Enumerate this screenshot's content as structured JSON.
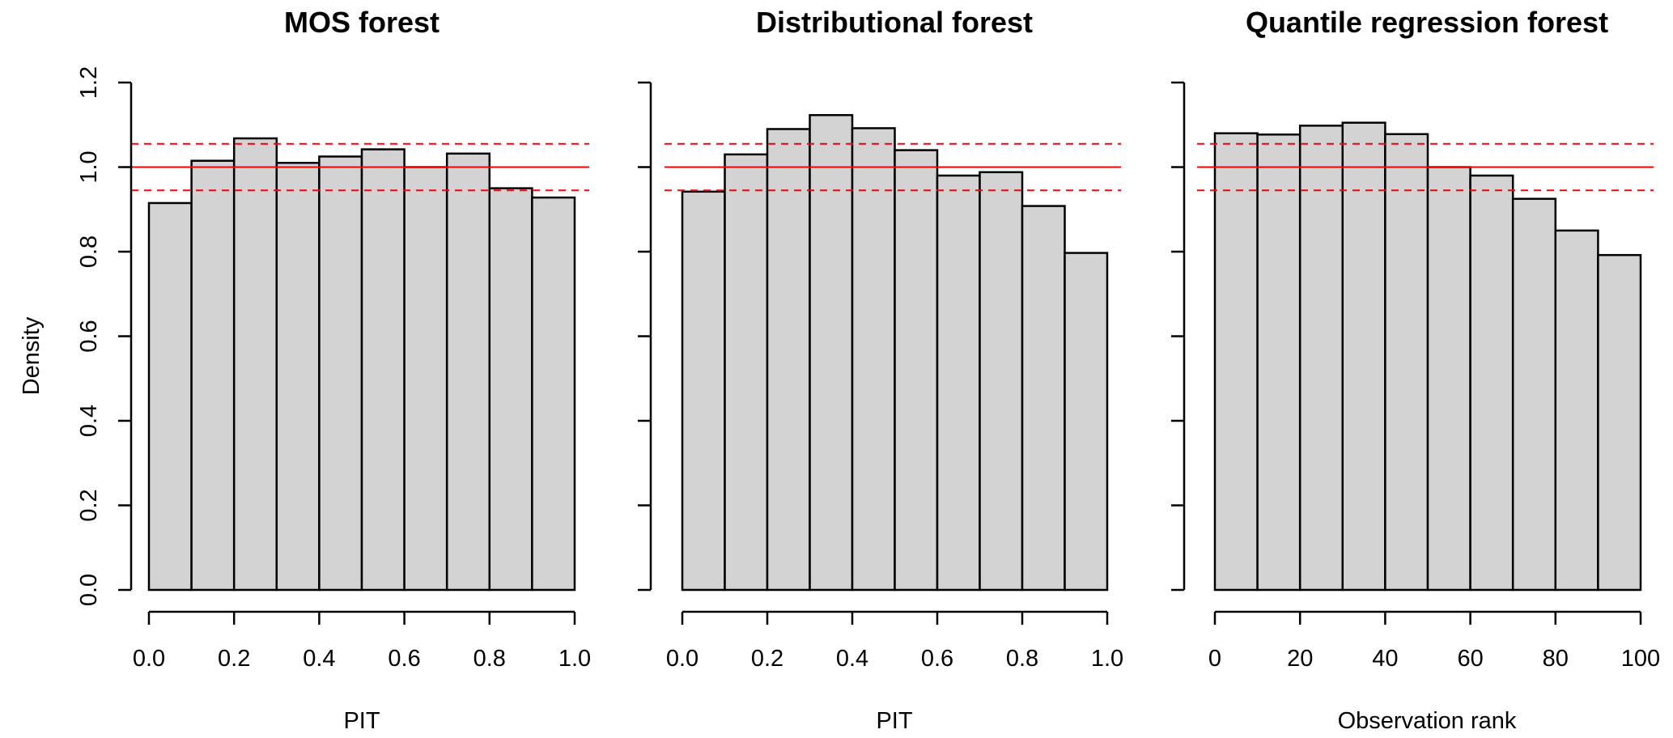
{
  "chart_data": [
    {
      "type": "bar",
      "title": "MOS forest",
      "xlabel": "PIT",
      "ylabel": "Density",
      "xlim": [
        0,
        1
      ],
      "ylim": [
        0,
        1.2
      ],
      "x_ticks": [
        "0.0",
        "0.2",
        "0.4",
        "0.6",
        "0.8",
        "1.0"
      ],
      "y_ticks": [
        "0.0",
        "0.2",
        "0.4",
        "0.6",
        "0.8",
        "1.0",
        "1.2"
      ],
      "bin_edges": [
        0,
        0.1,
        0.2,
        0.3,
        0.4,
        0.5,
        0.6,
        0.7,
        0.8,
        0.9,
        1.0
      ],
      "values": [
        0.915,
        1.015,
        1.068,
        1.01,
        1.025,
        1.042,
        1.0,
        1.032,
        0.95,
        0.928
      ],
      "reference_line": 1.0,
      "band": [
        0.945,
        1.055
      ],
      "bar_color": "#d3d3d3",
      "reference_color": "#ff0000"
    },
    {
      "type": "bar",
      "title": "Distributional forest",
      "xlabel": "PIT",
      "ylabel": "",
      "xlim": [
        0,
        1
      ],
      "ylim": [
        0,
        1.2
      ],
      "x_ticks": [
        "0.0",
        "0.2",
        "0.4",
        "0.6",
        "0.8",
        "1.0"
      ],
      "y_ticks": [],
      "bin_edges": [
        0,
        0.1,
        0.2,
        0.3,
        0.4,
        0.5,
        0.6,
        0.7,
        0.8,
        0.9,
        1.0
      ],
      "values": [
        0.942,
        1.03,
        1.09,
        1.123,
        1.092,
        1.04,
        0.98,
        0.988,
        0.908,
        0.797
      ],
      "reference_line": 1.0,
      "band": [
        0.945,
        1.055
      ],
      "bar_color": "#d3d3d3",
      "reference_color": "#ff0000"
    },
    {
      "type": "bar",
      "title": "Quantile regression forest",
      "xlabel": "Observation rank",
      "ylabel": "",
      "xlim": [
        0,
        100
      ],
      "ylim": [
        0,
        1.2
      ],
      "x_ticks": [
        "0",
        "20",
        "40",
        "60",
        "80",
        "100"
      ],
      "y_ticks": [],
      "bin_edges": [
        0,
        10,
        20,
        30,
        40,
        50,
        60,
        70,
        80,
        90,
        100
      ],
      "values": [
        1.08,
        1.077,
        1.098,
        1.105,
        1.078,
        1.0,
        0.98,
        0.925,
        0.85,
        0.792
      ],
      "reference_line": 1.0,
      "band": [
        0.945,
        1.055
      ],
      "bar_color": "#d3d3d3",
      "reference_color": "#ff0000"
    }
  ]
}
